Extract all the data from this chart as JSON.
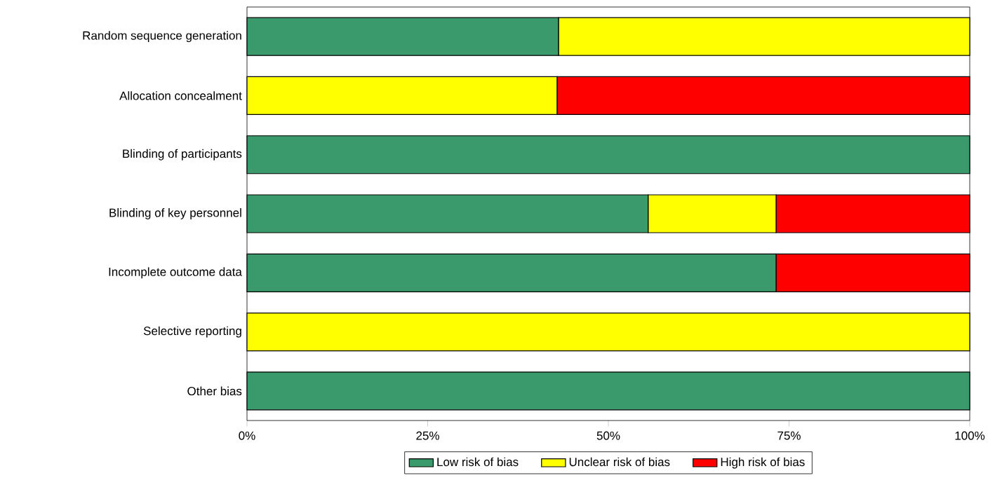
{
  "chart_data": {
    "type": "bar",
    "orientation": "horizontal",
    "stacked": true,
    "categories": [
      "Random sequence generation",
      "Allocation concealment",
      "Blinding of participants",
      "Blinding of key personnel",
      "Incomplete outcome data",
      "Selective reporting",
      "Other bias"
    ],
    "series": [
      {
        "name": "Low risk of bias",
        "color": "#3a9a6b",
        "values": [
          43.1,
          0,
          100,
          55.5,
          73.2,
          0,
          100
        ]
      },
      {
        "name": "Unclear risk of bias",
        "color": "#ffff00",
        "values": [
          56.9,
          42.9,
          0,
          17.7,
          0,
          100,
          0
        ]
      },
      {
        "name": "High risk of bias",
        "color": "#ff0000",
        "values": [
          0,
          57.1,
          0,
          26.8,
          26.8,
          0,
          0
        ]
      }
    ],
    "xlim": [
      0,
      100
    ],
    "xticks": [
      {
        "value": 0,
        "label": "0%"
      },
      {
        "value": 25,
        "label": "25%"
      },
      {
        "value": 50,
        "label": "50%"
      },
      {
        "value": 75,
        "label": "75%"
      },
      {
        "value": 100,
        "label": "100%"
      }
    ],
    "legend": "bottom",
    "grid": false
  }
}
